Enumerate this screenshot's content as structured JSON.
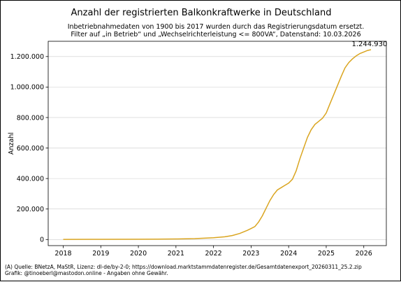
{
  "chart_data": {
    "type": "line",
    "title": "Anzahl der registrierten Balkonkraftwerke in Deutschland",
    "subtitle_lines": [
      "Inbetriebnahmedaten von 1900 bis 2017 wurden durch das Registrierungsdatum ersetzt.",
      "Filter auf „in Betrieb“ und „Wechselrichterleistung <= 800VA“, Datenstand: 10.03.2026"
    ],
    "xlabel": "",
    "ylabel": "Anzahl",
    "xlim": [
      2017.6,
      2026.6
    ],
    "ylim": [
      -40000,
      1300000
    ],
    "x_ticks": [
      2018,
      2019,
      2020,
      2021,
      2022,
      2023,
      2024,
      2025,
      2026
    ],
    "x_tick_labels": [
      "2018",
      "2019",
      "2020",
      "2021",
      "2022",
      "2023",
      "2024",
      "2025",
      "2026"
    ],
    "y_ticks": [
      0,
      200000,
      400000,
      600000,
      800000,
      1000000,
      1200000
    ],
    "y_tick_labels": [
      "0",
      "200.000",
      "400.000",
      "600.000",
      "800.000",
      "1.000.000",
      "1.200.000"
    ],
    "grid": "y",
    "line_color": "#daa520",
    "series": [
      {
        "x": [
          2018.0,
          2019.0,
          2020.0,
          2020.5,
          2021.0,
          2021.5,
          2021.8,
          2022.0,
          2022.3,
          2022.5,
          2022.7,
          2022.9,
          2023.0,
          2023.1,
          2023.2,
          2023.3,
          2023.4,
          2023.5,
          2023.6,
          2023.7,
          2023.8,
          2023.9,
          2024.0,
          2024.1,
          2024.2,
          2024.3,
          2024.4,
          2024.5,
          2024.6,
          2024.7,
          2024.8,
          2024.9,
          2025.0,
          2025.1,
          2025.2,
          2025.3,
          2025.4,
          2025.5,
          2025.6,
          2025.7,
          2025.8,
          2025.9,
          2026.0,
          2026.1,
          2026.19
        ],
        "values": [
          1000,
          1200,
          1800,
          2500,
          3500,
          6000,
          9000,
          12000,
          18000,
          26000,
          40000,
          60000,
          72000,
          85000,
          115000,
          155000,
          205000,
          255000,
          295000,
          325000,
          340000,
          355000,
          370000,
          395000,
          450000,
          530000,
          600000,
          670000,
          720000,
          755000,
          775000,
          795000,
          830000,
          890000,
          950000,
          1010000,
          1070000,
          1125000,
          1160000,
          1185000,
          1205000,
          1220000,
          1230000,
          1240000,
          1244930
        ]
      }
    ],
    "annotations": [
      {
        "text": "1.244.930",
        "x": 2026.19,
        "y": 1244930
      }
    ]
  },
  "footer": {
    "source": "(A) Quelle: BNetzA, MaStR, Lizenz: dl-de/by-2-0; https://download.marktstammdatenregister.de/Gesamtdatenexport_20260311_25.2.zip",
    "credit": "Grafik: @tinoeberl@mastodon.online - Angaben ohne Gewähr."
  }
}
